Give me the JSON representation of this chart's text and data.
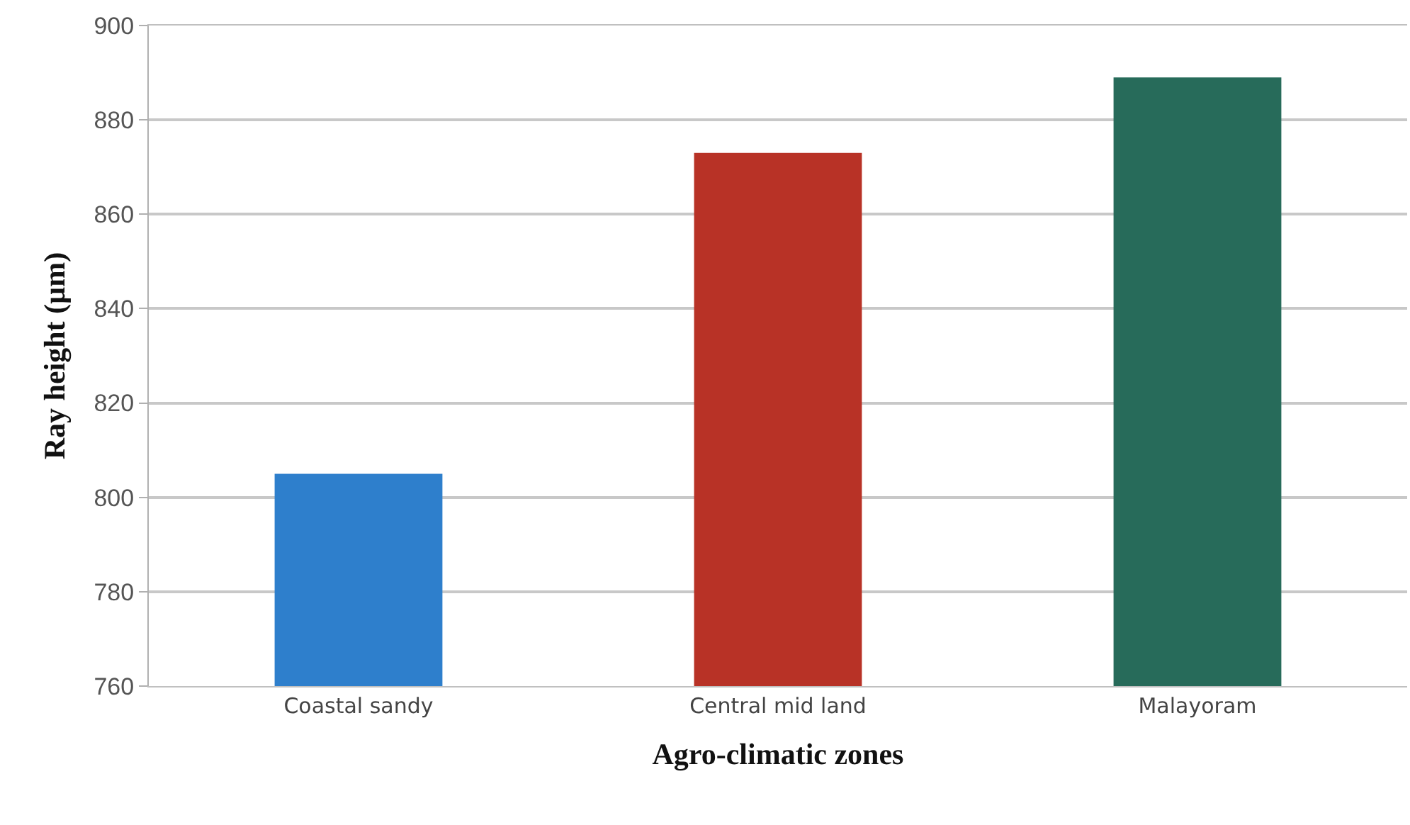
{
  "chart_data": {
    "type": "bar",
    "xlabel": "Agro-climatic zones",
    "ylabel": "Ray height (µm)",
    "categories": [
      "Coastal sandy",
      "Central mid land",
      "Malayoram"
    ],
    "values": [
      805,
      873,
      889
    ],
    "colors": [
      "#2e7fcc",
      "#b83226",
      "#276b5a"
    ],
    "ylim": [
      760,
      900
    ],
    "yticks": [
      760,
      780,
      800,
      820,
      840,
      860,
      880,
      900
    ],
    "grid": "y"
  }
}
